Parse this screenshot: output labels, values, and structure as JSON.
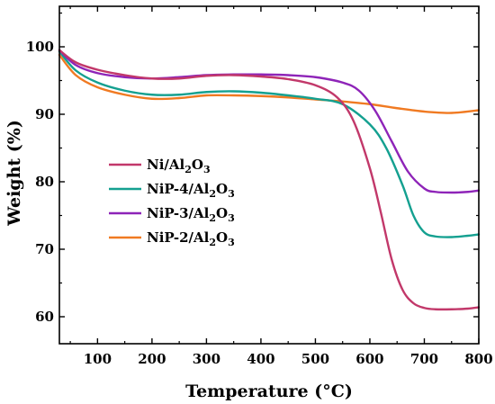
{
  "chart_data": {
    "type": "line",
    "xlabel": "Temperature (°C)",
    "ylabel": "Weight (%)",
    "xlim": [
      30,
      800
    ],
    "ylim": [
      56,
      106
    ],
    "xticks": [
      100,
      200,
      300,
      400,
      500,
      600,
      700,
      800
    ],
    "yticks": [
      60,
      70,
      80,
      90,
      100
    ],
    "grid": false,
    "legend_position": "center-left",
    "series": [
      {
        "name": "Ni/Al2O3",
        "label_main": "Ni/Al",
        "label_sub1": "2",
        "label_mid": "O",
        "label_sub2": "3",
        "color": "#c2386a",
        "x": [
          30,
          60,
          100,
          150,
          200,
          250,
          300,
          350,
          400,
          450,
          500,
          540,
          570,
          600,
          620,
          640,
          660,
          680,
          700,
          720,
          750,
          780,
          800
        ],
        "y": [
          99.5,
          97.7,
          96.6,
          95.8,
          95.3,
          95.3,
          95.7,
          95.8,
          95.6,
          95.2,
          94.3,
          92.5,
          89,
          82,
          75.5,
          68.5,
          64,
          62,
          61.3,
          61.1,
          61.1,
          61.2,
          61.4
        ]
      },
      {
        "name": "NiP-4/Al2O3",
        "label_main": "NiP-4/Al",
        "label_sub1": "2",
        "label_mid": "O",
        "label_sub2": "3",
        "color": "#14a090",
        "x": [
          30,
          60,
          100,
          150,
          200,
          250,
          300,
          350,
          400,
          450,
          500,
          550,
          600,
          630,
          660,
          680,
          700,
          720,
          750,
          780,
          800
        ],
        "y": [
          99.3,
          96.5,
          94.7,
          93.5,
          92.9,
          92.9,
          93.3,
          93.4,
          93.2,
          92.8,
          92.3,
          91.5,
          88.5,
          85,
          79.5,
          75,
          72.5,
          71.9,
          71.8,
          72,
          72.2
        ]
      },
      {
        "name": "NiP-3/Al2O3",
        "label_main": "NiP-3/Al",
        "label_sub1": "2",
        "label_mid": "O",
        "label_sub2": "3",
        "color": "#8e24b8",
        "x": [
          30,
          60,
          100,
          150,
          200,
          250,
          300,
          350,
          400,
          450,
          500,
          550,
          580,
          610,
          640,
          670,
          700,
          720,
          750,
          780,
          800
        ],
        "y": [
          99.5,
          97.3,
          96.1,
          95.5,
          95.3,
          95.5,
          95.8,
          95.9,
          95.9,
          95.8,
          95.5,
          94.7,
          93.5,
          90.5,
          86,
          81.5,
          79,
          78.5,
          78.4,
          78.5,
          78.7
        ]
      },
      {
        "name": "NiP-2/Al2O3",
        "label_main": "NiP-2/Al",
        "label_sub1": "2",
        "label_mid": "O",
        "label_sub2": "3",
        "color": "#f07a22",
        "x": [
          30,
          60,
          100,
          150,
          200,
          250,
          300,
          350,
          400,
          450,
          500,
          550,
          600,
          650,
          700,
          750,
          800
        ],
        "y": [
          98.8,
          95.8,
          94,
          92.9,
          92.3,
          92.4,
          92.8,
          92.8,
          92.7,
          92.5,
          92.2,
          91.9,
          91.5,
          90.9,
          90.4,
          90.2,
          90.6
        ]
      }
    ]
  }
}
